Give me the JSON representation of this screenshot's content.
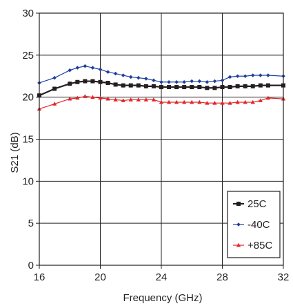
{
  "chart_data": {
    "type": "line",
    "title": "",
    "xlabel": "Frequency (GHz)",
    "ylabel": "S21 (dB)",
    "xlim": [
      16,
      32
    ],
    "ylim": [
      0,
      30
    ],
    "x_ticks": [
      16,
      20,
      24,
      28,
      32
    ],
    "y_ticks": [
      0,
      5,
      10,
      15,
      20,
      25,
      30
    ],
    "grid": true,
    "legend_position": "bottom-right",
    "series": [
      {
        "name": "25C",
        "color": "#231f20",
        "marker": "square",
        "x": [
          16,
          17,
          18,
          18.5,
          19,
          19.5,
          20,
          20.5,
          21,
          21.5,
          22,
          22.5,
          23,
          23.5,
          24,
          24.5,
          25,
          25.5,
          26,
          26.5,
          27,
          27.5,
          28,
          28.5,
          29,
          29.5,
          30,
          30.5,
          31,
          32
        ],
        "y": [
          20.2,
          21.0,
          21.6,
          21.8,
          21.9,
          21.9,
          21.8,
          21.7,
          21.5,
          21.4,
          21.4,
          21.4,
          21.3,
          21.3,
          21.2,
          21.2,
          21.2,
          21.2,
          21.2,
          21.2,
          21.1,
          21.1,
          21.2,
          21.2,
          21.3,
          21.3,
          21.3,
          21.4,
          21.4,
          21.4
        ]
      },
      {
        "name": "-40C",
        "color": "#1f3fa0",
        "marker": "diamond",
        "x": [
          16,
          17,
          18,
          18.5,
          19,
          19.5,
          20,
          20.5,
          21,
          21.5,
          22,
          22.5,
          23,
          23.5,
          24,
          24.5,
          25,
          25.5,
          26,
          26.5,
          27,
          27.5,
          28,
          28.5,
          29,
          29.5,
          30,
          30.5,
          31,
          32
        ],
        "y": [
          21.7,
          22.3,
          23.2,
          23.5,
          23.7,
          23.5,
          23.3,
          23.0,
          22.8,
          22.6,
          22.4,
          22.3,
          22.2,
          22.0,
          21.8,
          21.8,
          21.8,
          21.8,
          21.9,
          21.9,
          21.8,
          21.9,
          22.0,
          22.4,
          22.5,
          22.5,
          22.6,
          22.6,
          22.6,
          22.5
        ]
      },
      {
        "name": "+85C",
        "color": "#e3262b",
        "marker": "triangle",
        "x": [
          16,
          17,
          18,
          18.5,
          19,
          19.5,
          20,
          20.5,
          21,
          21.5,
          22,
          22.5,
          23,
          23.5,
          24,
          24.5,
          25,
          25.5,
          26,
          26.5,
          27,
          27.5,
          28,
          28.5,
          29,
          29.5,
          30,
          30.5,
          31,
          32
        ],
        "y": [
          18.6,
          19.2,
          19.8,
          19.9,
          20.1,
          20.0,
          19.9,
          19.8,
          19.7,
          19.6,
          19.7,
          19.7,
          19.7,
          19.7,
          19.4,
          19.4,
          19.4,
          19.4,
          19.4,
          19.4,
          19.3,
          19.3,
          19.3,
          19.3,
          19.4,
          19.4,
          19.4,
          19.6,
          19.9,
          19.8
        ]
      }
    ]
  }
}
